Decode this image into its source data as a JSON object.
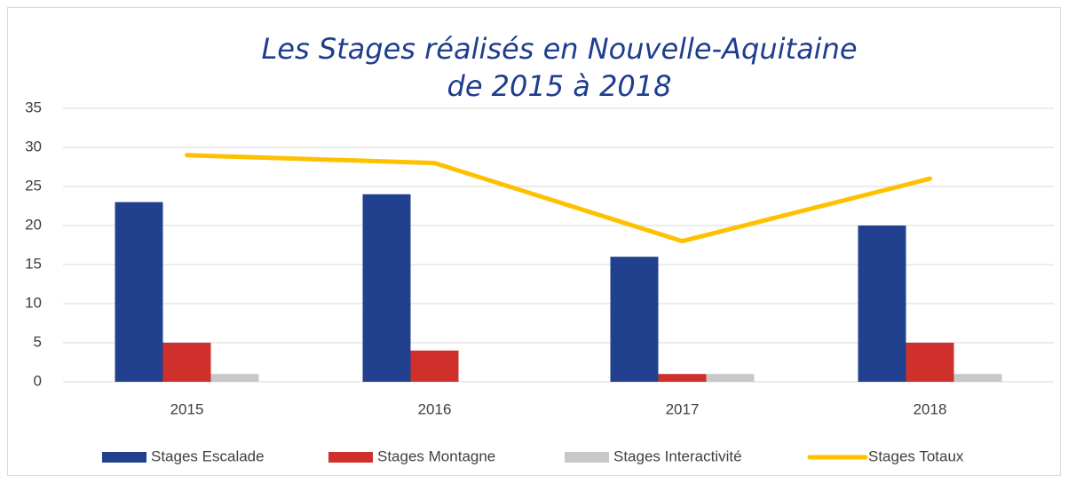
{
  "chart_data": {
    "type": "bar",
    "title": [
      "Les Stages réalisés en Nouvelle-Aquitaine",
      "de 2015 à 2018"
    ],
    "categories": [
      "2015",
      "2016",
      "2017",
      "2018"
    ],
    "series": [
      {
        "name": "Stages Escalade",
        "color": "#21418e",
        "values": [
          23,
          24,
          16,
          20
        ]
      },
      {
        "name": "Stages Montagne",
        "color": "#d0302b",
        "values": [
          5,
          4,
          1,
          5
        ]
      },
      {
        "name": "Stages Interactivité",
        "color": "#c8c8c8",
        "values": [
          1,
          0,
          1,
          1
        ]
      },
      {
        "name": "Stages Totaux",
        "color": "#ffc000",
        "type": "line",
        "values": [
          29,
          28,
          18,
          26
        ]
      }
    ],
    "ylim": [
      0,
      35
    ],
    "yticks": [
      0,
      5,
      10,
      15,
      20,
      25,
      30,
      35
    ],
    "grid": true,
    "legend": "bottom"
  }
}
